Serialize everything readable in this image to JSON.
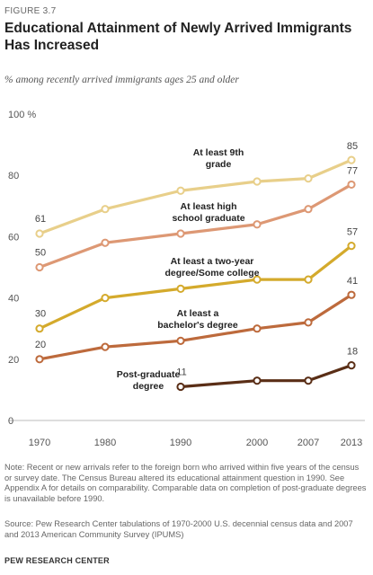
{
  "figure_label": "FIGURE 3.7",
  "note": "Note: Recent or new arrivals refer to the foreign born who arrived within five years of the census or survey date. The Census Bureau altered its educational attainment question in 1990. See Appendix A for details on comparability. Comparable data on completion of post-graduate degrees is unavailable before 1990.",
  "source": "Source: Pew Research Center tabulations of 1970-2000 U.S. decennial census data and 2007 and 2013 American Community Survey (IPUMS)",
  "credit": "PEW RESEARCH CENTER",
  "chart_data": {
    "type": "line",
    "title": "Educational Attainment of Newly Arrived Immigrants Has Increased",
    "subtitle": "% among recently arrived immigrants ages 25 and older",
    "xlabel": "",
    "ylabel": "",
    "ylim": [
      0,
      100
    ],
    "grid": false,
    "x": [
      "1970",
      "1980",
      "1990",
      "2000",
      "2007",
      "2013"
    ],
    "y_ticks": [
      "0",
      "20",
      "40",
      "60",
      "80",
      "100 %"
    ],
    "series": [
      {
        "name": "At least 9th grade",
        "label_lines": [
          "At least 9th",
          "grade"
        ],
        "color": "#e8cf8a",
        "values": [
          61,
          69,
          75,
          78,
          79,
          85
        ],
        "data_labels": [
          "61",
          "",
          "",
          "",
          "",
          "85"
        ]
      },
      {
        "name": "At least high school graduate",
        "label_lines": [
          "At least high",
          "school graduate"
        ],
        "color": "#dd9874",
        "values": [
          50,
          58,
          61,
          64,
          69,
          77
        ],
        "data_labels": [
          "50",
          "",
          "",
          "",
          "",
          "77"
        ]
      },
      {
        "name": "At least a two-year degree/Some college",
        "label_lines": [
          "At least a two-year",
          "degree/Some college"
        ],
        "color": "#d4aa2c",
        "values": [
          30,
          40,
          43,
          46,
          46,
          57
        ],
        "data_labels": [
          "30",
          "",
          "",
          "",
          "",
          "57"
        ]
      },
      {
        "name": "At least a bachelor's degree",
        "label_lines": [
          "At least a",
          "bachelor's degree"
        ],
        "color": "#bd6a3c",
        "values": [
          20,
          24,
          26,
          30,
          32,
          41
        ],
        "data_labels": [
          "20",
          "",
          "",
          "",
          "",
          "41"
        ]
      },
      {
        "name": "Post-graduate degree",
        "label_lines": [
          "Post-graduate",
          "degree"
        ],
        "color": "#5a2e16",
        "values": [
          null,
          null,
          11,
          13,
          13,
          18
        ],
        "data_labels": [
          "",
          "",
          "11",
          "",
          "",
          "18"
        ]
      }
    ]
  }
}
